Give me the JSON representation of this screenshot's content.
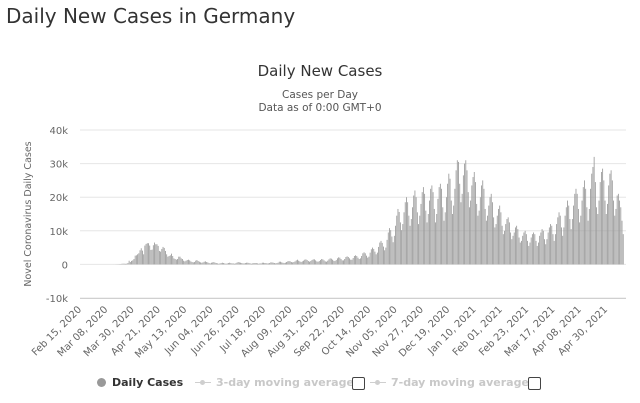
{
  "page": {
    "heading": "Daily New Cases in Germany"
  },
  "colors": {
    "bar": "#9a9a9a",
    "grid": "#e6e6e6",
    "axis_text": "#666666",
    "legend_inactive": "#c8c8c8"
  },
  "chart_data": {
    "type": "bar",
    "title": "Daily New Cases",
    "subtitle": [
      "Cases per Day",
      "Data as of 0:00 GMT+0"
    ],
    "ylabel": "Novel Coronavirus Daily Cases",
    "xlabel": "",
    "ylim": [
      -10000,
      40000
    ],
    "yticks": [
      -10000,
      0,
      10000,
      20000,
      30000,
      40000
    ],
    "ytick_labels": [
      "-10k",
      "0",
      "10k",
      "20k",
      "30k",
      "40k"
    ],
    "grid": true,
    "x_tick_labels": [
      "Feb 15, 2020",
      "Mar 08, 2020",
      "Mar 30, 2020",
      "Apr 21, 2020",
      "May 13, 2020",
      "Jun 04, 2020",
      "Jun 26, 2020",
      "Jul 18, 2020",
      "Aug 09, 2020",
      "Aug 31, 2020",
      "Sep 22, 2020",
      "Oct 14, 2020",
      "Nov 05, 2020",
      "Nov 27, 2020",
      "Dec 19, 2020",
      "Jan 10, 2021",
      "Feb 01, 2021",
      "Feb 23, 2021",
      "Mar 17, 2021",
      "Apr 08, 2021",
      "Apr 30, 2021"
    ],
    "series": [
      {
        "name": "Daily Cases",
        "values": [
          0,
          0,
          0,
          0,
          0,
          0,
          0,
          0,
          0,
          0,
          0,
          0,
          0,
          3,
          5,
          0,
          14,
          35,
          55,
          64,
          84,
          175,
          220,
          206,
          166,
          207,
          398,
          1089,
          700,
          1037,
          1200,
          1600,
          2600,
          2700,
          3000,
          3300,
          4200,
          4800,
          4100,
          3000,
          5600,
          6100,
          6300,
          6300,
          5600,
          4300,
          4400,
          5700,
          6500,
          6000,
          6000,
          5500,
          4000,
          3800,
          4600,
          5200,
          4900,
          4000,
          3000,
          2300,
          2500,
          2700,
          3200,
          2500,
          1800,
          1600,
          1400,
          1600,
          2300,
          2300,
          1800,
          1600,
          1100,
          900,
          1100,
          1300,
          1400,
          1200,
          900,
          700,
          600,
          700,
          1100,
          1300,
          1000,
          800,
          600,
          500,
          600,
          800,
          900,
          700,
          600,
          400,
          300,
          500,
          600,
          700,
          500,
          400,
          300,
          200,
          300,
          400,
          500,
          400,
          300,
          200,
          300,
          400,
          500,
          400,
          300,
          300,
          200,
          300,
          500,
          700,
          600,
          500,
          400,
          300,
          300,
          400,
          500,
          500,
          400,
          300,
          200,
          300,
          400,
          400,
          400,
          300,
          200,
          300,
          300,
          500,
          500,
          400,
          400,
          300,
          300,
          400,
          600,
          600,
          500,
          400,
          300,
          400,
          500,
          800,
          800,
          600,
          500,
          400,
          500,
          700,
          900,
          1000,
          900,
          700,
          600,
          700,
          900,
          1200,
          1400,
          1100,
          900,
          700,
          900,
          1100,
          1400,
          1500,
          1300,
          1000,
          800,
          1000,
          1300,
          1500,
          1500,
          1200,
          900,
          800,
          1000,
          1300,
          1600,
          1500,
          1200,
          900,
          800,
          1100,
          1500,
          1800,
          1700,
          1400,
          1100,
          1000,
          1300,
          1800,
          2100,
          2000,
          1600,
          1200,
          1200,
          1600,
          2200,
          2400,
          2200,
          1800,
          1400,
          1400,
          1900,
          2500,
          2700,
          2500,
          2000,
          1600,
          1800,
          2500,
          3300,
          3600,
          3300,
          2600,
          2000,
          2300,
          3500,
          4500,
          5000,
          4600,
          3800,
          3000,
          3500,
          5200,
          6500,
          7000,
          6400,
          5300,
          4200,
          5000,
          7300,
          9500,
          10800,
          10200,
          8300,
          6600,
          8500,
          11500,
          14500,
          16500,
          15600,
          12500,
          10200,
          12000,
          15500,
          18500,
          20000,
          18500,
          14500,
          11500,
          13500,
          17000,
          20500,
          22000,
          20000,
          15500,
          12000,
          14500,
          18000,
          21500,
          23000,
          21000,
          16000,
          12500,
          15000,
          19000,
          22500,
          23500,
          21500,
          16500,
          12500,
          15000,
          19500,
          23000,
          24000,
          22500,
          17000,
          13000,
          15500,
          20000,
          24000,
          27000,
          25500,
          19000,
          15000,
          17500,
          22500,
          28000,
          31000,
          30500,
          24000,
          18500,
          21000,
          26500,
          30000,
          31000,
          28000,
          21500,
          17000,
          19000,
          23500,
          26000,
          27500,
          24500,
          18000,
          14500,
          16000,
          20000,
          23500,
          25000,
          22500,
          16500,
          13000,
          14500,
          17500,
          20000,
          21000,
          18500,
          14000,
          11000,
          12000,
          14500,
          16500,
          17500,
          15500,
          11500,
          9000,
          10000,
          12000,
          13500,
          14000,
          12500,
          9500,
          7500,
          8500,
          9500,
          11000,
          11500,
          10500,
          8000,
          6500,
          7000,
          8500,
          9500,
          10000,
          9000,
          7000,
          5500,
          6500,
          8000,
          9000,
          9500,
          9000,
          7000,
          5500,
          6500,
          8500,
          9500,
          10500,
          10000,
          7500,
          6000,
          7500,
          9500,
          11000,
          12000,
          11500,
          9000,
          7000,
          9000,
          12000,
          14000,
          15500,
          14500,
          11000,
          8500,
          11000,
          14500,
          17000,
          19000,
          17500,
          13500,
          10500,
          13500,
          17500,
          21000,
          22500,
          21000,
          16500,
          12500,
          14500,
          19000,
          23000,
          25000,
          22500,
          17000,
          13000,
          16500,
          22500,
          27000,
          29000,
          32000,
          24500,
          17000,
          15000,
          19000,
          24500,
          27500,
          28500,
          25000,
          19000,
          15000,
          18000,
          23500,
          27000,
          28000,
          25000,
          19000,
          14500,
          16500,
          20500,
          21000,
          19000,
          17000,
          13000,
          9000
        ]
      }
    ],
    "legend": [
      {
        "label": "Daily Cases",
        "active": true
      },
      {
        "label": "3-day moving average",
        "active": false
      },
      {
        "label": "7-day moving average",
        "active": false
      }
    ],
    "legend_position": "bottom"
  }
}
